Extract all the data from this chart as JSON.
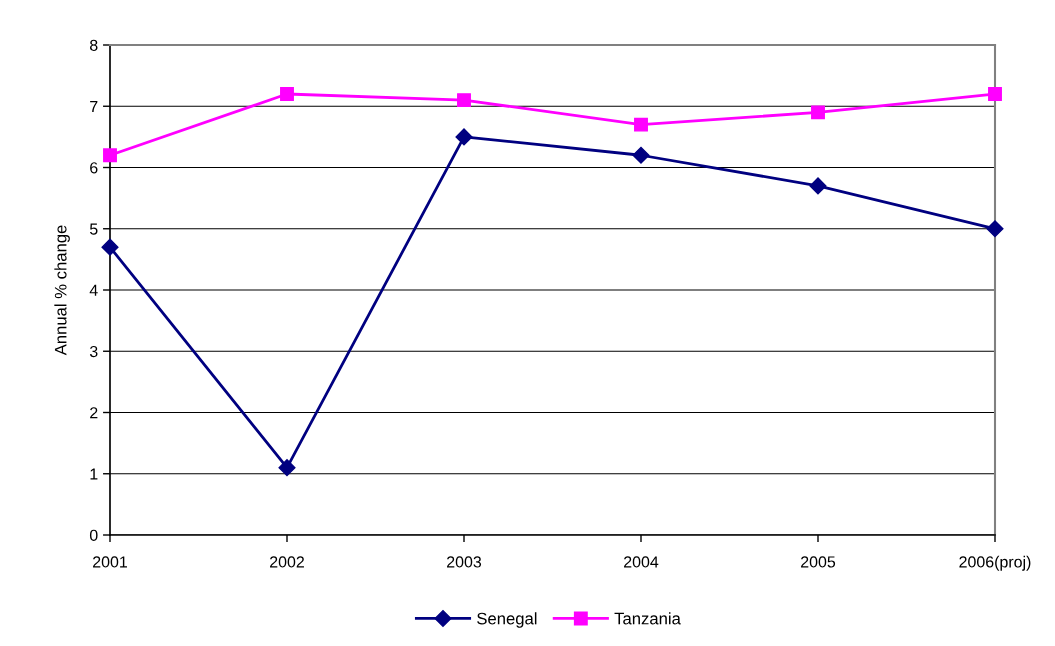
{
  "chart_data": {
    "type": "line",
    "ylabel": "Annual % change",
    "categories": [
      "2001",
      "2002",
      "2003",
      "2004",
      "2005",
      "2006(proj)"
    ],
    "series": [
      {
        "name": "Senegal",
        "color": "#000080",
        "marker": "diamond",
        "values": [
          4.7,
          1.1,
          6.5,
          6.2,
          5.7,
          5.0
        ]
      },
      {
        "name": "Tanzania",
        "color": "#ff00ff",
        "marker": "square",
        "values": [
          6.2,
          7.2,
          7.1,
          6.7,
          6.9,
          7.2
        ]
      }
    ],
    "ylim": [
      0,
      8
    ],
    "yticks": [
      0,
      1,
      2,
      3,
      4,
      5,
      6,
      7,
      8
    ],
    "grid": "y",
    "legend": "bottom",
    "line_style": "solid"
  }
}
